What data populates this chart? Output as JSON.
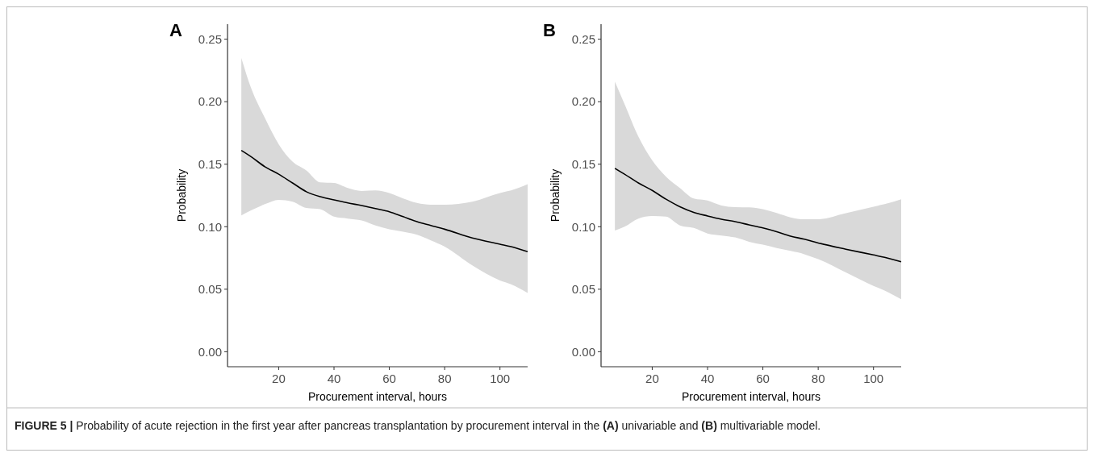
{
  "chart_data": [
    {
      "type": "line",
      "title": "A",
      "xlabel": "Procurement interval, hours",
      "ylabel": "Probability",
      "xlim": [
        1.5,
        110
      ],
      "ylim": [
        -0.012,
        0.262
      ],
      "xticks": [
        20,
        40,
        60,
        80,
        100
      ],
      "yticks": [
        {
          "value": 0,
          "label": "0.00"
        },
        {
          "value": 0.05,
          "label": "0.05"
        },
        {
          "value": 0.1,
          "label": "0.10"
        },
        {
          "value": 0.15,
          "label": "0.15"
        },
        {
          "value": 0.2,
          "label": "0.20"
        },
        {
          "value": 0.25,
          "label": "0.25"
        }
      ],
      "grid": false,
      "series": [
        {
          "color": "#000000",
          "x": [
            6.5,
            10,
            15,
            20,
            25,
            30,
            35,
            40,
            45,
            50,
            55,
            60,
            65,
            70,
            75,
            80,
            90,
            100,
            104,
            110
          ],
          "values": [
            0.161,
            0.156,
            0.148,
            0.142,
            0.135,
            0.128,
            0.124,
            0.1215,
            0.119,
            0.117,
            0.1145,
            0.112,
            0.108,
            0.104,
            0.101,
            0.098,
            0.091,
            0.086,
            0.084,
            0.08
          ],
          "lower": [
            0.109,
            0.113,
            0.118,
            0.1215,
            0.12,
            0.115,
            0.114,
            0.108,
            0.1065,
            0.105,
            0.101,
            0.098,
            0.096,
            0.0935,
            0.089,
            0.084,
            0.069,
            0.057,
            0.054,
            0.047
          ],
          "upper": [
            0.235,
            0.211,
            0.187,
            0.166,
            0.152,
            0.145,
            0.1355,
            0.135,
            0.131,
            0.1286,
            0.129,
            0.127,
            0.1226,
            0.119,
            0.1176,
            0.1176,
            0.12,
            0.127,
            0.129,
            0.134
          ]
        }
      ],
      "annotations": [
        "FIGURE 5 | Probability of acute rejection in the first year after pancreas transplantation by procurement interval in the (A) univariable and (B) multivariable model."
      ]
    },
    {
      "type": "line",
      "title": "B",
      "xlabel": "Procurement interval, hours",
      "ylabel": "Probability",
      "xlim": [
        1.5,
        110
      ],
      "ylim": [
        -0.012,
        0.262
      ],
      "xticks": [
        20,
        40,
        60,
        80,
        100
      ],
      "yticks": [
        {
          "value": 0,
          "label": "0.00"
        },
        {
          "value": 0.05,
          "label": "0.05"
        },
        {
          "value": 0.1,
          "label": "0.10"
        },
        {
          "value": 0.15,
          "label": "0.15"
        },
        {
          "value": 0.2,
          "label": "0.20"
        },
        {
          "value": 0.25,
          "label": "0.25"
        }
      ],
      "grid": false,
      "series": [
        {
          "color": "#000000",
          "x": [
            6.5,
            10,
            15,
            20,
            25,
            30,
            35,
            40,
            45,
            50,
            55,
            60,
            65,
            70,
            75,
            80,
            90,
            100,
            104,
            110
          ],
          "values": [
            0.1467,
            0.142,
            0.135,
            0.129,
            0.122,
            0.116,
            0.1115,
            0.1086,
            0.106,
            0.104,
            0.1015,
            0.099,
            0.096,
            0.0925,
            0.09,
            0.087,
            0.082,
            0.0774,
            0.0755,
            0.072
          ],
          "lower": [
            0.097,
            0.1,
            0.1065,
            0.1086,
            0.108,
            0.101,
            0.099,
            0.0946,
            0.093,
            0.0914,
            0.088,
            0.0856,
            0.083,
            0.0806,
            0.078,
            0.074,
            0.0634,
            0.0527,
            0.049,
            0.042
          ],
          "upper": [
            0.216,
            0.198,
            0.172,
            0.153,
            0.14,
            0.131,
            0.1226,
            0.121,
            0.117,
            0.1157,
            0.1155,
            0.114,
            0.111,
            0.1075,
            0.106,
            0.106,
            0.1108,
            0.116,
            0.118,
            0.122
          ]
        }
      ]
    }
  ]
}
